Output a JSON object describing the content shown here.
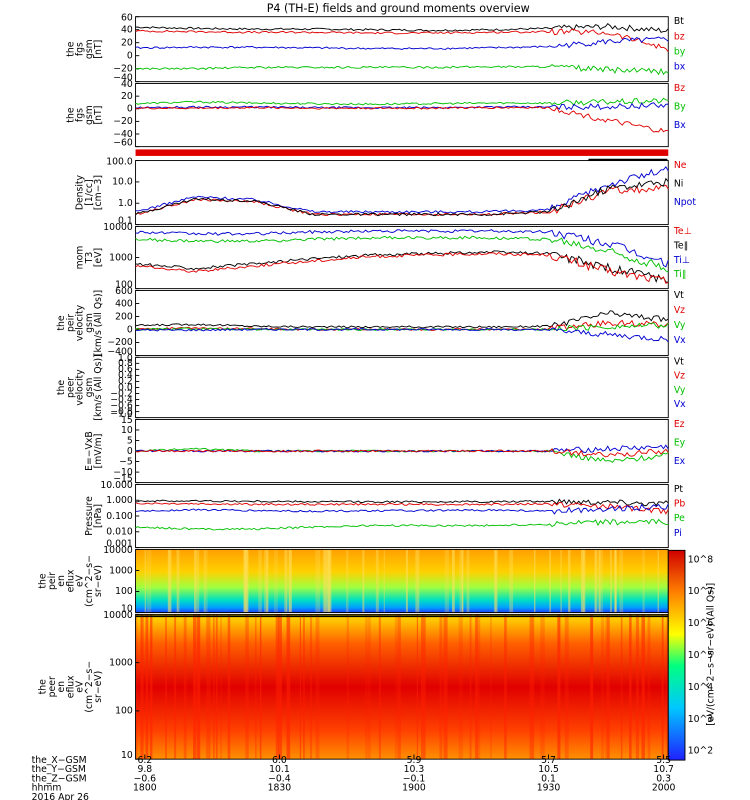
{
  "title": "P4 (TH-E) fields and ground moments overview",
  "colors": {
    "black": "#000000",
    "red": "#e00000",
    "blue": "#0000d0",
    "green": "#00c000"
  },
  "chart_data": [
    {
      "type": "line",
      "ylabel_lines": [
        "the",
        "fgs",
        "gsm",
        "[nT]"
      ],
      "yticks": [
        "60",
        "40",
        "20",
        "0",
        "−20",
        "−40"
      ],
      "ylim": [
        -40,
        60
      ],
      "legend": [
        {
          "name": "Bt",
          "color": "#000000"
        },
        {
          "name": "bz",
          "color": "#e00000"
        },
        {
          "name": "by",
          "color": "#00c000"
        },
        {
          "name": "bx",
          "color": "#0000d0"
        }
      ],
      "series": [
        {
          "name": "Bt",
          "color": "#000000",
          "values": [
            44,
            42,
            41,
            41,
            40,
            39,
            40,
            42,
            45,
            38
          ]
        },
        {
          "name": "bz",
          "color": "#e00000",
          "values": [
            38,
            37,
            36,
            36,
            35,
            35,
            36,
            37,
            35,
            10
          ]
        },
        {
          "name": "bx",
          "color": "#0000d0",
          "values": [
            12,
            13,
            13,
            12,
            11,
            11,
            12,
            14,
            22,
            25
          ]
        },
        {
          "name": "by",
          "color": "#00c000",
          "values": [
            -20,
            -20,
            -18,
            -18,
            -18,
            -18,
            -17,
            -17,
            -22,
            -25
          ]
        }
      ]
    },
    {
      "type": "line",
      "ylabel_lines": [
        "the",
        "fgs",
        "gsm",
        "[nT]"
      ],
      "yticks": [
        "40",
        "20",
        "0",
        "−20",
        "−40",
        "−60"
      ],
      "ylim": [
        -70,
        40
      ],
      "legend": [
        {
          "name": "Bz",
          "color": "#e00000"
        },
        {
          "name": "By",
          "color": "#00c000"
        },
        {
          "name": "Bx",
          "color": "#0000d0"
        }
      ],
      "series": [
        {
          "name": "By",
          "color": "#00c000",
          "values": [
            5,
            8,
            6,
            5,
            4,
            5,
            6,
            6,
            8,
            10
          ]
        },
        {
          "name": "Bx",
          "color": "#0000d0",
          "values": [
            -2,
            -1,
            -1,
            -2,
            -2,
            -2,
            -1,
            -1,
            0,
            2
          ]
        },
        {
          "name": "Bz",
          "color": "#e00000",
          "values": [
            -3,
            -3,
            -2,
            -3,
            -3,
            -3,
            -2,
            -2,
            -25,
            -45
          ]
        }
      ]
    },
    {
      "type": "line",
      "log": true,
      "ylabel_lines": [
        "Density",
        "[1/cc]",
        "[cm−3]"
      ],
      "yticks": [
        "100.0",
        "10.0",
        "1.0",
        "0.1"
      ],
      "ylim": [
        0.1,
        100
      ],
      "legend": [
        {
          "name": "Ne",
          "color": "#e00000"
        },
        {
          "name": "Ni",
          "color": "#000000"
        },
        {
          "name": "Npot",
          "color": "#0000d0"
        }
      ],
      "series": [
        {
          "name": "Npot",
          "color": "#0000d0",
          "values": [
            0.4,
            2.0,
            1.5,
            0.4,
            0.4,
            0.4,
            0.4,
            0.5,
            8,
            40
          ]
        },
        {
          "name": "Ne",
          "color": "#e00000",
          "values": [
            0.3,
            1.5,
            1.2,
            0.3,
            0.3,
            0.3,
            0.3,
            0.4,
            4,
            5
          ]
        },
        {
          "name": "Ni",
          "color": "#000000",
          "values": [
            0.3,
            1.6,
            1.3,
            0.3,
            0.3,
            0.3,
            0.3,
            0.4,
            5,
            10
          ]
        }
      ]
    },
    {
      "type": "line",
      "log": true,
      "ylabel_lines": [
        "mom",
        "T3",
        "[eV]"
      ],
      "yticks": [
        "10000",
        "1000",
        "100"
      ],
      "ylim": [
        30,
        10000
      ],
      "legend": [
        {
          "name": "Te⊥",
          "color": "#e00000"
        },
        {
          "name": "Te∥",
          "color": "#000000"
        },
        {
          "name": "Ti⊥",
          "color": "#0000d0"
        },
        {
          "name": "Ti∥",
          "color": "#00c000"
        }
      ],
      "series": [
        {
          "name": "Ti⊥",
          "color": "#0000d0",
          "values": [
            6000,
            5000,
            5000,
            6000,
            6500,
            6500,
            6500,
            6000,
            2000,
            300
          ]
        },
        {
          "name": "Ti∥",
          "color": "#00c000",
          "values": [
            3000,
            2500,
            2500,
            3000,
            3500,
            3500,
            3500,
            3000,
            1000,
            200
          ]
        },
        {
          "name": "Te∥",
          "color": "#000000",
          "values": [
            300,
            200,
            300,
            500,
            700,
            800,
            900,
            800,
            200,
            70
          ]
        },
        {
          "name": "Te⊥",
          "color": "#e00000",
          "values": [
            250,
            150,
            250,
            400,
            600,
            700,
            800,
            700,
            150,
            60
          ]
        }
      ]
    },
    {
      "type": "line",
      "ylabel_lines": [
        "the",
        "peir",
        "velocity",
        "gsm",
        "[km/s (All Qs)]"
      ],
      "yticks": [
        "600",
        "400",
        "200",
        "0",
        "−200",
        "−400"
      ],
      "ylim": [
        -400,
        600
      ],
      "legend": [
        {
          "name": "Vt",
          "color": "#000000"
        },
        {
          "name": "Vz",
          "color": "#e00000"
        },
        {
          "name": "Vy",
          "color": "#00c000"
        },
        {
          "name": "Vx",
          "color": "#0000d0"
        }
      ],
      "series": [
        {
          "name": "Vt",
          "color": "#000000",
          "values": [
            60,
            80,
            50,
            40,
            40,
            40,
            40,
            50,
            250,
            150
          ]
        },
        {
          "name": "Vz",
          "color": "#e00000",
          "values": [
            10,
            20,
            10,
            0,
            0,
            0,
            0,
            10,
            100,
            80
          ]
        },
        {
          "name": "Vy",
          "color": "#00c000",
          "values": [
            0,
            10,
            0,
            0,
            0,
            0,
            0,
            0,
            50,
            60
          ]
        },
        {
          "name": "Vx",
          "color": "#0000d0",
          "values": [
            -10,
            -10,
            0,
            0,
            0,
            0,
            0,
            -10,
            -80,
            -150
          ]
        }
      ]
    },
    {
      "type": "line",
      "ylabel_lines": [
        "the",
        "peer",
        "velocity",
        "gsm",
        "[km/s (All Qs)]"
      ],
      "yticks": [
        "1.0",
        "0.8",
        "0.6",
        "0.4",
        "0.2",
        "0.0",
        "−0.2",
        "−0.4",
        "−0.6",
        "−0.8",
        "−1.0"
      ],
      "ylim": [
        -1,
        1
      ],
      "legend": [
        {
          "name": "Vt",
          "color": "#000000"
        },
        {
          "name": "Vz",
          "color": "#e00000"
        },
        {
          "name": "Vy",
          "color": "#00c000"
        },
        {
          "name": "Vx",
          "color": "#0000d0"
        }
      ],
      "series": []
    },
    {
      "type": "line",
      "ylabel_lines": [
        "E=−VxB",
        "[mV/m]"
      ],
      "yticks": [
        "15",
        "10",
        "5",
        "0",
        "−5",
        "−10",
        "−15"
      ],
      "ylim": [
        -15,
        15
      ],
      "legend": [
        {
          "name": "Ez",
          "color": "#e00000"
        },
        {
          "name": "Ey",
          "color": "#00c000"
        },
        {
          "name": "Ex",
          "color": "#0000d0"
        }
      ],
      "series": [
        {
          "name": "Ey",
          "color": "#00c000",
          "values": [
            0,
            1,
            0,
            0,
            0,
            0,
            0,
            0,
            -5,
            -2
          ]
        },
        {
          "name": "Ex",
          "color": "#0000d0",
          "values": [
            0,
            0,
            0,
            0,
            0,
            0,
            0,
            0,
            1,
            2
          ]
        },
        {
          "name": "Ez",
          "color": "#e00000",
          "values": [
            0,
            0,
            0,
            0,
            0,
            0,
            0,
            0,
            -2,
            0
          ]
        }
      ]
    },
    {
      "type": "line",
      "log": true,
      "ylabel_lines": [
        "Pressure",
        "[nPa]"
      ],
      "yticks": [
        "10.000",
        "1.000",
        "0.100",
        "0.010",
        "0.001"
      ],
      "ylim": [
        0.001,
        10
      ],
      "legend": [
        {
          "name": "Pt",
          "color": "#000000"
        },
        {
          "name": "Pb",
          "color": "#e00000"
        },
        {
          "name": "Pe",
          "color": "#00c000"
        },
        {
          "name": "Pi",
          "color": "#0000d0"
        }
      ],
      "series": [
        {
          "name": "Pt",
          "color": "#000000",
          "values": [
            0.9,
            0.9,
            0.85,
            0.8,
            0.8,
            0.8,
            0.8,
            0.85,
            0.8,
            0.6
          ]
        },
        {
          "name": "Pb",
          "color": "#e00000",
          "values": [
            0.65,
            0.6,
            0.55,
            0.55,
            0.55,
            0.55,
            0.55,
            0.6,
            0.4,
            0.2
          ]
        },
        {
          "name": "Pi",
          "color": "#0000d0",
          "values": [
            0.2,
            0.25,
            0.22,
            0.2,
            0.22,
            0.22,
            0.24,
            0.2,
            0.3,
            0.4
          ]
        },
        {
          "name": "Pe",
          "color": "#00c000",
          "values": [
            0.02,
            0.015,
            0.015,
            0.02,
            0.025,
            0.025,
            0.025,
            0.03,
            0.04,
            0.04
          ]
        }
      ]
    },
    {
      "type": "heatmap",
      "ylabel_lines": [
        "the",
        "peir",
        "en",
        "eflux",
        "eV",
        "(cm^2−s−",
        "sr−eV)"
      ],
      "yticks": [
        "10000",
        "1000",
        "100",
        "10"
      ]
    },
    {
      "type": "heatmap",
      "ylabel_lines": [
        "the",
        "peer",
        "en",
        "eflux",
        "eV",
        "(cm^2−s−",
        "sr−eV)"
      ],
      "yticks": [
        "10000",
        "1000",
        "100",
        "10"
      ]
    }
  ],
  "colorbar": {
    "ticks": [
      "10^8",
      "10^7",
      "10^6",
      "10^5",
      "10^4",
      "10^3",
      "10^2"
    ],
    "label": "[eV/(cm^2−s−sr−eV) (All Qs)]"
  },
  "xaxis": {
    "rows": [
      {
        "label": "the_X−GSM",
        "values": [
          "6.2",
          "6.0",
          "5.9",
          "5.7",
          "5.5"
        ]
      },
      {
        "label": "the_Y−GSM",
        "values": [
          "9.8",
          "10.1",
          "10.3",
          "10.5",
          "10.7"
        ]
      },
      {
        "label": "the_Z−GSM",
        "values": [
          "−0.6",
          "−0.4",
          "−0.1",
          "0.1",
          "0.3"
        ]
      },
      {
        "label": "hhmm",
        "values": [
          "1800",
          "1830",
          "1900",
          "1930",
          "2000"
        ]
      }
    ],
    "date": "2016 Apr 26"
  }
}
